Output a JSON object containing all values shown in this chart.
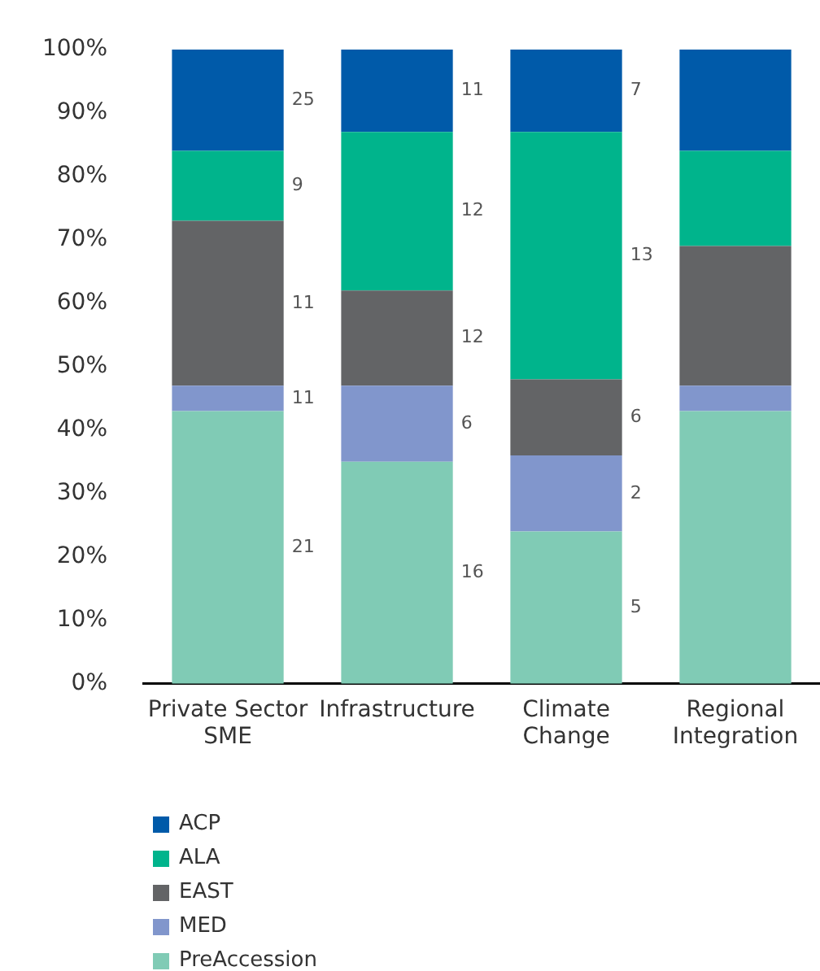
{
  "chart_data": {
    "type": "bar",
    "stacked": true,
    "categories": [
      "Private Sector SME",
      "Infrastructure",
      "Climate Change",
      "Regional Integration"
    ],
    "series": [
      {
        "name": "PreAccession",
        "color": "#80cbb5",
        "values": [
          43,
          35,
          24,
          43
        ]
      },
      {
        "name": "MED",
        "color": "#8196cc",
        "values": [
          4,
          12,
          12,
          4
        ]
      },
      {
        "name": "EAST",
        "color": "#636466",
        "values": [
          26,
          15,
          12,
          22
        ]
      },
      {
        "name": "ALA",
        "color": "#00b48c",
        "values": [
          11,
          25,
          39,
          15
        ]
      },
      {
        "name": "ACP",
        "color": "#005aa9",
        "values": [
          16,
          13,
          13,
          16
        ]
      }
    ],
    "annotations": [
      "21",
      "11",
      "11",
      "9",
      "25",
      "16",
      "6",
      "12",
      "12",
      "11",
      "5",
      "2",
      "6",
      "13",
      "7"
    ],
    "ylim": [
      0,
      100
    ],
    "yticks": [
      {
        "value": 0,
        "label": "0%"
      },
      {
        "value": 10,
        "label": "10%"
      },
      {
        "value": 20,
        "label": "20%"
      },
      {
        "value": 30,
        "label": "30%"
      },
      {
        "value": 40,
        "label": "40%"
      },
      {
        "value": 50,
        "label": "50%"
      },
      {
        "value": 60,
        "label": "60%"
      },
      {
        "value": 70,
        "label": "70%"
      },
      {
        "value": 80,
        "label": "80%"
      },
      {
        "value": 90,
        "label": "90%"
      },
      {
        "value": 100,
        "label": "100%"
      }
    ],
    "grid": false,
    "legend": "bottom left"
  }
}
